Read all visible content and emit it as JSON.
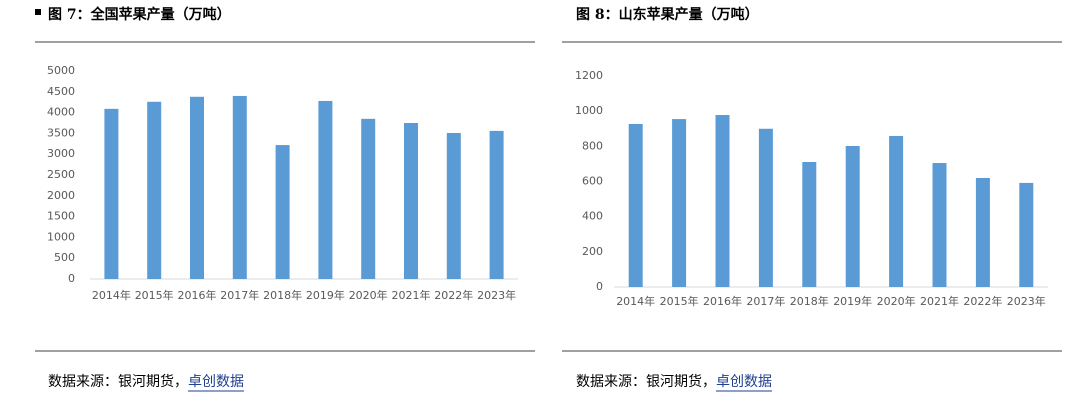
{
  "chart_data": [
    {
      "type": "bar",
      "title": "图 7：全国苹果产量（万吨）",
      "categories": [
        "2014年",
        "2015年",
        "2016年",
        "2017年",
        "2018年",
        "2019年",
        "2020年",
        "2021年",
        "2022年",
        "2023年"
      ],
      "values": [
        4090,
        4260,
        4380,
        4400,
        3220,
        4280,
        3850,
        3750,
        3510,
        3560
      ],
      "color": "#5b9bd5",
      "ylim": [
        0,
        5000
      ],
      "yticks": [
        0,
        500,
        1000,
        1500,
        2000,
        2500,
        3000,
        3500,
        4000,
        4500,
        5000
      ],
      "grid": false,
      "source": "数据来源：银河期货，",
      "source_link": "卓创数据"
    },
    {
      "type": "bar",
      "title": "图 8：山东苹果产量（万吨）",
      "categories": [
        "2014年",
        "2015年",
        "2016年",
        "2017年",
        "2018年",
        "2019年",
        "2020年",
        "2021年",
        "2022年",
        "2023年"
      ],
      "values": [
        927,
        955,
        978,
        900,
        711,
        802,
        859,
        705,
        620,
        592
      ],
      "color": "#5b9bd5",
      "ylim": [
        0,
        1200
      ],
      "yticks": [
        0,
        200,
        400,
        600,
        800,
        1000,
        1200
      ],
      "grid": false,
      "source": "数据来源：银河期货，",
      "source_link": "卓创数据"
    }
  ]
}
